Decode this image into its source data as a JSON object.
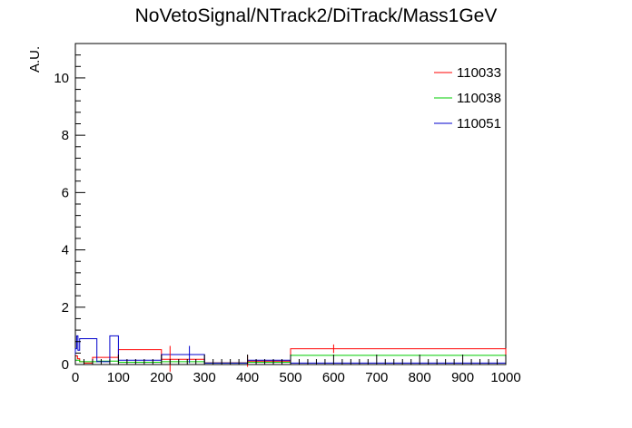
{
  "chart_data": {
    "type": "line",
    "title": "NoVetoSignal/NTrack2/DiTrack/Mass1GeV",
    "xlabel": "",
    "ylabel": "A.U.",
    "xlim": [
      0,
      1000
    ],
    "ylim": [
      0,
      11.2
    ],
    "x_ticks": [
      0,
      100,
      200,
      300,
      400,
      500,
      600,
      700,
      800,
      900,
      1000
    ],
    "y_ticks": [
      0,
      2,
      4,
      6,
      8,
      10
    ],
    "grid": false,
    "legend_position": "top-right",
    "series": [
      {
        "name": "110033",
        "color": "#ff0000",
        "bins": [
          {
            "x0": 0,
            "x1": 5,
            "y": 0.3
          },
          {
            "x0": 5,
            "x1": 10,
            "y": 0.2
          },
          {
            "x0": 10,
            "x1": 20,
            "y": 0.1
          },
          {
            "x0": 20,
            "x1": 40,
            "y": 0.05
          },
          {
            "x0": 40,
            "x1": 100,
            "y": 0.25
          },
          {
            "x0": 100,
            "x1": 200,
            "y": 0.52
          },
          {
            "x0": 200,
            "x1": 300,
            "y": 0.18
          },
          {
            "x0": 300,
            "x1": 400,
            "y": 0.06
          },
          {
            "x0": 400,
            "x1": 500,
            "y": 0.12
          },
          {
            "x0": 500,
            "x1": 1000,
            "y": 0.55
          }
        ]
      },
      {
        "name": "110038",
        "color": "#00cc00",
        "bins": [
          {
            "x0": 0,
            "x1": 10,
            "y": 0.15
          },
          {
            "x0": 10,
            "x1": 50,
            "y": 0.1
          },
          {
            "x0": 50,
            "x1": 100,
            "y": 0.12
          },
          {
            "x0": 100,
            "x1": 200,
            "y": 0.08
          },
          {
            "x0": 200,
            "x1": 300,
            "y": 0.1
          },
          {
            "x0": 300,
            "x1": 400,
            "y": 0.05
          },
          {
            "x0": 400,
            "x1": 500,
            "y": 0.08
          },
          {
            "x0": 500,
            "x1": 1000,
            "y": 0.32
          }
        ]
      },
      {
        "name": "110051",
        "color": "#0000cc",
        "bins": [
          {
            "x0": 0,
            "x1": 3,
            "y": 0.55
          },
          {
            "x0": 3,
            "x1": 6,
            "y": 1.0
          },
          {
            "x0": 6,
            "x1": 10,
            "y": 0.5
          },
          {
            "x0": 10,
            "x1": 15,
            "y": 0.9
          },
          {
            "x0": 15,
            "x1": 50,
            "y": 0.9
          },
          {
            "x0": 50,
            "x1": 80,
            "y": 0.1
          },
          {
            "x0": 80,
            "x1": 100,
            "y": 1.0
          },
          {
            "x0": 100,
            "x1": 200,
            "y": 0.15
          },
          {
            "x0": 200,
            "x1": 300,
            "y": 0.35
          },
          {
            "x0": 300,
            "x1": 400,
            "y": 0.05
          },
          {
            "x0": 400,
            "x1": 500,
            "y": 0.15
          },
          {
            "x0": 500,
            "x1": 1000,
            "y": 0.05
          }
        ]
      }
    ],
    "error_bars": [
      {
        "series": "110033",
        "x": 600,
        "y": 0.55,
        "err": 0.15
      },
      {
        "series": "110033",
        "x": 220,
        "y": 0.2,
        "err": 0.45
      },
      {
        "series": "110051",
        "x": 265,
        "y": 0.35,
        "err": 0.3
      },
      {
        "series": "110033",
        "x": 400,
        "y": 0.12,
        "err": 0.2
      }
    ]
  }
}
